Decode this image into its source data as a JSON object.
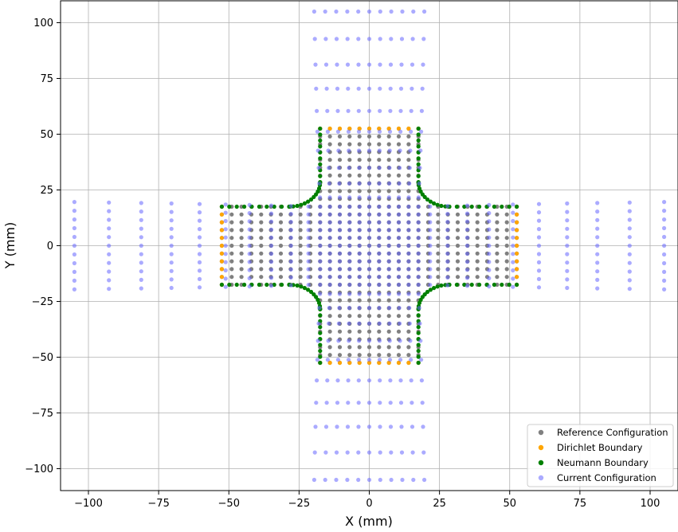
{
  "chart_data": {
    "type": "scatter",
    "title": "",
    "xlabel": "X (mm)",
    "ylabel": "Y (mm)",
    "xlim": [
      -110,
      110
    ],
    "ylim": [
      -110,
      110
    ],
    "xticks": [
      -100,
      -75,
      -50,
      -25,
      0,
      25,
      50,
      75,
      100
    ],
    "yticks": [
      -100,
      -75,
      -50,
      -25,
      0,
      25,
      50,
      75,
      100
    ],
    "xtick_labels": [
      "−100",
      "−75",
      "−50",
      "−25",
      "0",
      "25",
      "50",
      "75",
      "100"
    ],
    "ytick_labels": [
      "−100",
      "−75",
      "−50",
      "−25",
      "0",
      "25",
      "50",
      "75",
      "100"
    ],
    "grid": true,
    "legend_position": "bottom-right",
    "geometry": {
      "arm_half_width": 17.5,
      "arm_half_length": 52.5,
      "fillet_radius": 11,
      "current_stretch_max": 2.0
    },
    "series": [
      {
        "name": "Reference Configuration",
        "color": "#808080"
      },
      {
        "name": "Dirichlet Boundary",
        "color": "#ffa500"
      },
      {
        "name": "Neumann Boundary",
        "color": "#008000"
      },
      {
        "name": "Current Configuration",
        "color": "#6666ff"
      }
    ]
  }
}
